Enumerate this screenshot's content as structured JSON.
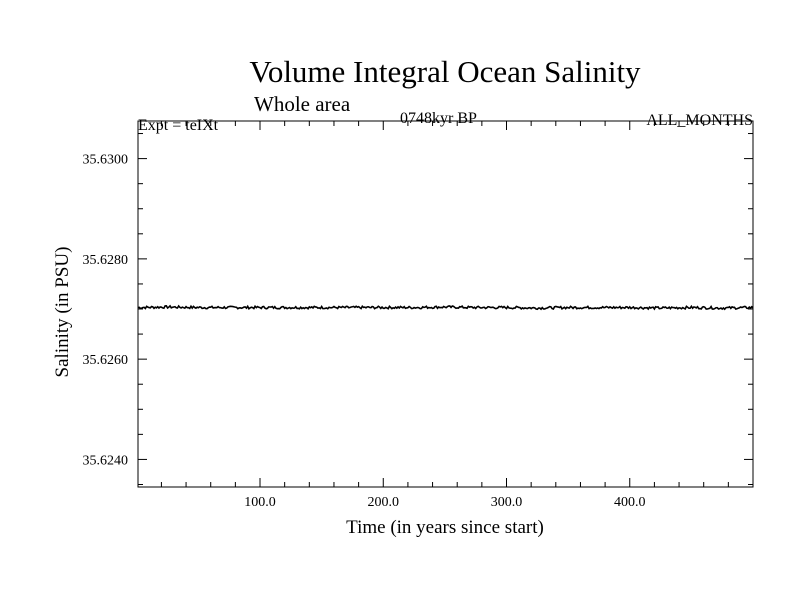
{
  "chart_data": {
    "type": "line",
    "title": "Volume Integral Ocean Salinity",
    "subtitle": "Whole area",
    "experiment": "Expt = teIXt",
    "period": "0748kyr BP",
    "months": "ALL_MONTHS",
    "xlabel": "Time (in years since start)",
    "ylabel": "Salinity (in PSU)",
    "xlim": [
      1,
      500
    ],
    "ylim": [
      35.62345,
      35.63075
    ],
    "x_ticks": [
      100,
      200,
      300,
      400
    ],
    "x_tick_labels": [
      "100.0",
      "200.0",
      "300.0",
      "400.0"
    ],
    "x_minor_step": 20,
    "y_ticks": [
      35.624,
      35.626,
      35.628,
      35.63
    ],
    "y_tick_labels": [
      "35.6240",
      "35.6260",
      "35.6280",
      "35.6300"
    ],
    "y_minor_step": 0.0005,
    "series": [
      {
        "name": "salinity",
        "color": "#000000",
        "x": [
          1,
          25,
          50,
          75,
          100,
          125,
          150,
          175,
          200,
          225,
          250,
          275,
          300,
          325,
          350,
          375,
          400,
          425,
          450,
          475,
          500
        ],
        "values": [
          35.62703,
          35.62704,
          35.62703,
          35.62703,
          35.62703,
          35.62703,
          35.62703,
          35.62703,
          35.62703,
          35.62703,
          35.62704,
          35.62703,
          35.62703,
          35.62702,
          35.62703,
          35.62703,
          35.62703,
          35.62702,
          35.62703,
          35.62702,
          35.62703
        ]
      }
    ]
  }
}
